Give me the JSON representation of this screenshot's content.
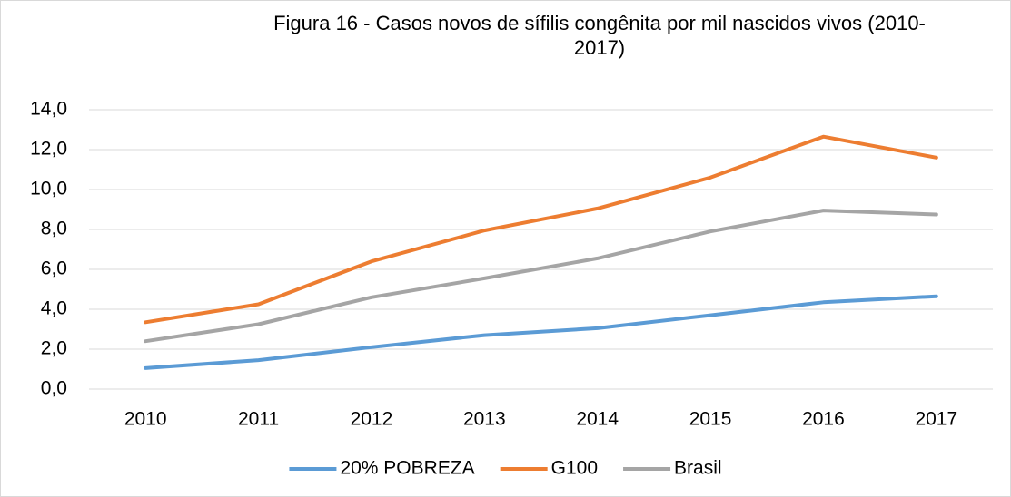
{
  "chart_data": {
    "type": "line",
    "title": "Figura 16 - Casos novos de sífilis congênita por mil nascidos vivos  (2010-2017)",
    "categories": [
      "2010",
      "2011",
      "2012",
      "2013",
      "2014",
      "2015",
      "2016",
      "2017"
    ],
    "series": [
      {
        "name": "20% POBREZA",
        "color": "#5b9bd5",
        "values": [
          1.05,
          1.45,
          2.1,
          2.7,
          3.05,
          3.7,
          4.35,
          4.65
        ]
      },
      {
        "name": "G100",
        "color": "#ed7d31",
        "values": [
          3.35,
          4.25,
          6.4,
          7.95,
          9.05,
          10.6,
          12.65,
          11.6
        ]
      },
      {
        "name": "Brasil",
        "color": "#a5a5a5",
        "values": [
          2.4,
          3.25,
          4.6,
          5.55,
          6.55,
          7.9,
          8.95,
          8.75
        ]
      }
    ],
    "ylim": [
      0,
      14
    ],
    "yticks": [
      {
        "value": 0,
        "label": "0,0"
      },
      {
        "value": 2,
        "label": "2,0"
      },
      {
        "value": 4,
        "label": "4,0"
      },
      {
        "value": 6,
        "label": "6,0"
      },
      {
        "value": 8,
        "label": "8,0"
      },
      {
        "value": 10,
        "label": "10,0"
      },
      {
        "value": 12,
        "label": "12,0"
      },
      {
        "value": 14,
        "label": "14,0"
      }
    ],
    "grid": true,
    "legend": "bottom"
  }
}
